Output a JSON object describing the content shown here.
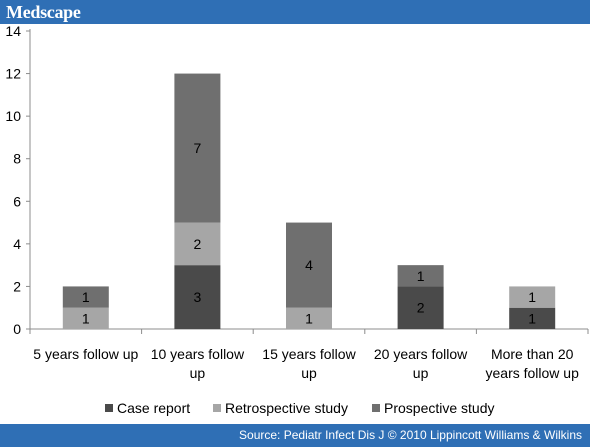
{
  "header": {
    "logo": "Medscape"
  },
  "footer": {
    "source": "Source: Pediatr Infect Dis J © 2010 Lippincott Williams & Wilkins"
  },
  "chart_data": {
    "type": "bar",
    "stacked": true,
    "categories": [
      [
        "5 years follow up"
      ],
      [
        "10 years follow",
        "up"
      ],
      [
        "15 years follow",
        "up"
      ],
      [
        "20 years follow",
        "up"
      ],
      [
        "More than 20",
        "years follow up"
      ]
    ],
    "series": [
      {
        "name": "Case report",
        "color": "#4a4a4a",
        "values": [
          0,
          3,
          0,
          2,
          1
        ]
      },
      {
        "name": "Retrospective study",
        "color": "#a6a6a6",
        "values": [
          1,
          2,
          1,
          0,
          1
        ]
      },
      {
        "name": "Prospective study",
        "color": "#6f6f6f",
        "values": [
          1,
          7,
          4,
          1,
          0
        ]
      }
    ],
    "ylim": [
      0,
      14
    ],
    "yticks": [
      0,
      2,
      4,
      6,
      8,
      10,
      12,
      14
    ],
    "grid": false,
    "legend_position": "bottom",
    "title": "",
    "xlabel": "",
    "ylabel": ""
  }
}
